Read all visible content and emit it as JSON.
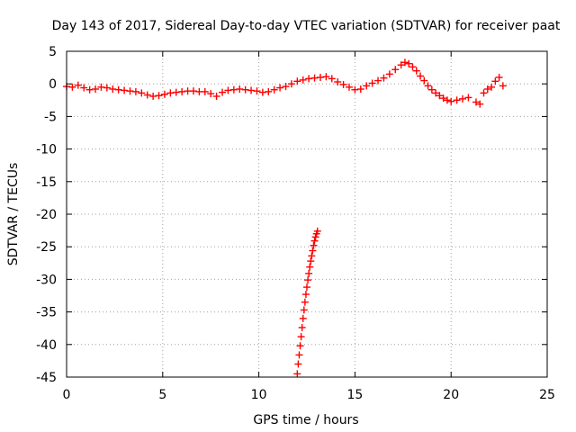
{
  "chart_data": {
    "type": "scatter",
    "title": "Day 143 of 2017, Sidereal Day-to-day VTEC variation (SDTVAR) for receiver paat",
    "xlabel": "GPS time / hours",
    "ylabel": "SDTVAR / TECUs",
    "xlim": [
      0,
      25
    ],
    "ylim": [
      -45,
      5
    ],
    "xticks": [
      0,
      5,
      10,
      15,
      20,
      25
    ],
    "yticks": [
      5,
      0,
      -5,
      -10,
      -15,
      -20,
      -25,
      -30,
      -35,
      -40,
      -45
    ],
    "grid": true,
    "marker": "plus",
    "color": "#ff0000",
    "series": [
      {
        "name": "SDTVAR",
        "points": [
          [
            0.0,
            -0.4
          ],
          [
            0.3,
            -0.5
          ],
          [
            0.6,
            -0.2
          ],
          [
            0.9,
            -0.6
          ],
          [
            1.2,
            -0.9
          ],
          [
            1.5,
            -0.8
          ],
          [
            1.8,
            -0.5
          ],
          [
            2.1,
            -0.6
          ],
          [
            2.4,
            -0.8
          ],
          [
            2.7,
            -0.9
          ],
          [
            3.0,
            -1.0
          ],
          [
            3.3,
            -1.1
          ],
          [
            3.6,
            -1.2
          ],
          [
            3.9,
            -1.4
          ],
          [
            4.2,
            -1.7
          ],
          [
            4.5,
            -1.9
          ],
          [
            4.8,
            -1.8
          ],
          [
            5.1,
            -1.6
          ],
          [
            5.4,
            -1.4
          ],
          [
            5.7,
            -1.3
          ],
          [
            6.0,
            -1.2
          ],
          [
            6.3,
            -1.1
          ],
          [
            6.6,
            -1.1
          ],
          [
            6.9,
            -1.2
          ],
          [
            7.2,
            -1.2
          ],
          [
            7.5,
            -1.5
          ],
          [
            7.8,
            -1.9
          ],
          [
            8.1,
            -1.3
          ],
          [
            8.4,
            -1.0
          ],
          [
            8.7,
            -0.9
          ],
          [
            9.0,
            -0.8
          ],
          [
            9.3,
            -0.9
          ],
          [
            9.6,
            -1.0
          ],
          [
            9.9,
            -1.1
          ],
          [
            10.2,
            -1.3
          ],
          [
            10.5,
            -1.2
          ],
          [
            10.8,
            -0.9
          ],
          [
            11.1,
            -0.6
          ],
          [
            11.4,
            -0.4
          ],
          [
            11.7,
            0.0
          ],
          [
            12.0,
            0.4
          ],
          [
            12.3,
            0.6
          ],
          [
            12.6,
            0.8
          ],
          [
            12.9,
            0.9
          ],
          [
            13.2,
            1.0
          ],
          [
            13.5,
            1.1
          ],
          [
            13.8,
            0.8
          ],
          [
            14.1,
            0.3
          ],
          [
            14.4,
            -0.1
          ],
          [
            14.7,
            -0.5
          ],
          [
            15.0,
            -0.9
          ],
          [
            15.3,
            -0.8
          ],
          [
            15.6,
            -0.3
          ],
          [
            15.9,
            0.1
          ],
          [
            16.2,
            0.5
          ],
          [
            16.5,
            0.9
          ],
          [
            16.8,
            1.5
          ],
          [
            17.1,
            2.2
          ],
          [
            17.4,
            2.9
          ],
          [
            17.6,
            3.3
          ],
          [
            17.8,
            3.1
          ],
          [
            18.0,
            2.6
          ],
          [
            18.2,
            2.0
          ],
          [
            18.4,
            1.2
          ],
          [
            18.6,
            0.5
          ],
          [
            18.8,
            -0.3
          ],
          [
            19.0,
            -0.9
          ],
          [
            19.2,
            -1.4
          ],
          [
            19.4,
            -1.8
          ],
          [
            19.6,
            -2.2
          ],
          [
            19.8,
            -2.5
          ],
          [
            20.0,
            -2.7
          ],
          [
            20.3,
            -2.5
          ],
          [
            20.6,
            -2.3
          ],
          [
            20.9,
            -2.1
          ],
          [
            21.3,
            -2.8
          ],
          [
            21.5,
            -3.1
          ],
          [
            21.7,
            -1.4
          ],
          [
            21.9,
            -0.8
          ],
          [
            22.1,
            -0.5
          ],
          [
            22.3,
            0.4
          ],
          [
            22.5,
            1.0
          ],
          [
            22.7,
            -0.3
          ],
          [
            12.0,
            -44.5
          ],
          [
            12.05,
            -43.0
          ],
          [
            12.1,
            -41.6
          ],
          [
            12.15,
            -40.2
          ],
          [
            12.2,
            -38.8
          ],
          [
            12.25,
            -37.4
          ],
          [
            12.3,
            -36.0
          ],
          [
            12.35,
            -34.7
          ],
          [
            12.4,
            -33.5
          ],
          [
            12.45,
            -32.3
          ],
          [
            12.5,
            -31.2
          ],
          [
            12.55,
            -30.1
          ],
          [
            12.6,
            -29.1
          ],
          [
            12.65,
            -28.1
          ],
          [
            12.7,
            -27.2
          ],
          [
            12.75,
            -26.4
          ],
          [
            12.8,
            -25.6
          ],
          [
            12.85,
            -24.8
          ],
          [
            12.9,
            -24.1
          ],
          [
            12.95,
            -23.5
          ],
          [
            13.0,
            -23.0
          ],
          [
            13.05,
            -22.6
          ]
        ]
      }
    ]
  }
}
